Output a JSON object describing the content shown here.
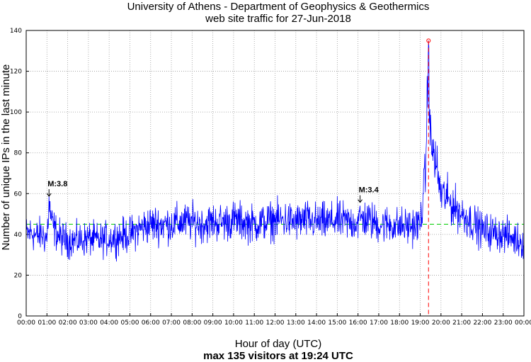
{
  "chart_data": {
    "type": "line",
    "title": "University of Athens - Department of Geophysics & Geothermics",
    "subtitle": "web site traffic for 27-Jun-2018",
    "xlabel": "Hour of day (UTC)",
    "ylabel": "Number of unique IPs in the last minute",
    "footer": "max 135 visitors at 19:24 UTC",
    "xlim": [
      0,
      24
    ],
    "ylim": [
      0,
      140
    ],
    "grid": true,
    "x_tick_labels": [
      "00:00",
      "01:00",
      "02:00",
      "03:00",
      "04:00",
      "05:00",
      "06:00",
      "07:00",
      "08:00",
      "09:00",
      "10:00",
      "11:00",
      "12:00",
      "13:00",
      "14:00",
      "15:00",
      "16:00",
      "17:00",
      "18:00",
      "19:00",
      "20:00",
      "21:00",
      "22:00",
      "23:00",
      "00:00"
    ],
    "y_tick_labels": [
      "0",
      "20",
      "40",
      "60",
      "80",
      "100",
      "120",
      "140"
    ],
    "baseline": 45,
    "max": {
      "time": "19:24",
      "hour": 19.4,
      "value": 135
    },
    "annotations": [
      {
        "text": "M:3.8",
        "hour": 1.1,
        "value": 58
      },
      {
        "text": "M:3.4",
        "hour": 16.1,
        "value": 55
      }
    ],
    "series": [
      {
        "color": "#0000ff",
        "hour": [
          0,
          0.25,
          0.5,
          0.75,
          1.0,
          1.1,
          1.25,
          1.5,
          1.75,
          2,
          2.5,
          3,
          3.5,
          4,
          4.5,
          5,
          5.5,
          6,
          6.5,
          7,
          7.5,
          8,
          8.5,
          9,
          9.5,
          10,
          10.5,
          11,
          11.5,
          12,
          12.5,
          13,
          13.5,
          14,
          14.5,
          15,
          15.5,
          16,
          16.1,
          16.5,
          17,
          17.5,
          18,
          18.5,
          19,
          19.25,
          19.4,
          19.5,
          19.75,
          20,
          20.25,
          20.5,
          21,
          21.5,
          22,
          22.5,
          23,
          23.5,
          24
        ],
        "value": [
          40,
          41,
          39,
          40,
          38,
          55,
          45,
          40,
          38,
          37,
          37,
          38,
          37,
          38,
          39,
          40,
          43,
          45,
          45,
          45,
          46,
          46,
          45,
          46,
          46,
          47,
          46,
          45,
          46,
          47,
          47,
          46,
          47,
          46,
          46,
          47,
          46,
          46,
          48,
          47,
          45,
          45,
          44,
          44,
          45,
          70,
          130,
          85,
          75,
          60,
          58,
          55,
          50,
          46,
          42,
          41,
          40,
          38,
          36
        ]
      }
    ]
  }
}
